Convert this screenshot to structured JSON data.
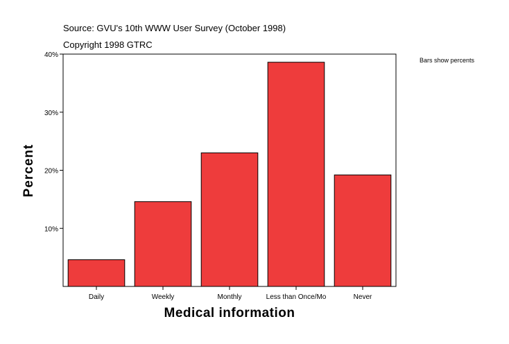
{
  "header": {
    "source": "Source: GVU's 10th WWW User Survey (October 1998)",
    "copyright": "Copyright 1998 GTRC"
  },
  "note": "Bars show percents",
  "colors": {
    "bar": "#ee3c3c",
    "border": "#000000",
    "background": "#ffffff"
  },
  "chart_data": {
    "type": "bar",
    "categories": [
      "Daily",
      "Weekly",
      "Monthly",
      "Less than Once/Mo",
      "Never"
    ],
    "values": [
      4.6,
      14.6,
      23.0,
      38.6,
      19.2
    ],
    "xlabel": "Medical information",
    "ylabel": "Percent",
    "ylim": [
      0,
      40
    ],
    "yticks": [
      10,
      20,
      30,
      40
    ],
    "ytick_labels": [
      "10%",
      "20%",
      "30%",
      "40%"
    ],
    "grid": false
  }
}
